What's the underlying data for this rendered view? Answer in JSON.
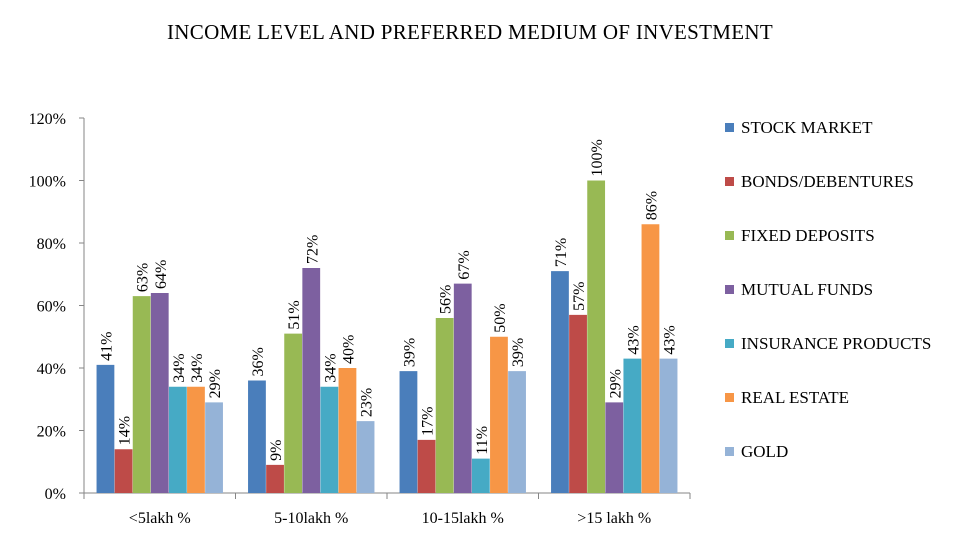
{
  "chart_data": {
    "type": "bar",
    "title": "INCOME LEVEL AND PREFERRED MEDIUM OF INVESTMENT",
    "xlabel": "",
    "ylabel": "",
    "ylim": [
      0,
      120
    ],
    "yticks": [
      "0%",
      "20%",
      "40%",
      "60%",
      "80%",
      "100%",
      "120%"
    ],
    "categories": [
      "<5lakh %",
      "5-10lakh %",
      "10-15lakh %",
      ">15 lakh %"
    ],
    "legend_position": "right",
    "grid": false,
    "series": [
      {
        "name": "STOCK MARKET",
        "color": "#4a7ebb",
        "values": [
          41,
          36,
          39,
          71
        ],
        "labels": [
          "41%",
          "36%",
          "39%",
          "71%"
        ]
      },
      {
        "name": "BONDS/DEBENTURES",
        "color": "#be4b48",
        "values": [
          14,
          9,
          17,
          57
        ],
        "labels": [
          "14%",
          "9%",
          "17%",
          "57%"
        ]
      },
      {
        "name": "FIXED DEPOSITS",
        "color": "#98b954",
        "values": [
          63,
          51,
          56,
          100
        ],
        "labels": [
          "63%",
          "51%",
          "56%",
          "100%"
        ]
      },
      {
        "name": "MUTUAL FUNDS",
        "color": "#7d60a0",
        "values": [
          64,
          72,
          67,
          29
        ],
        "labels": [
          "64%",
          "72%",
          "67%",
          "29%"
        ]
      },
      {
        "name": "INSURANCE PRODUCTS",
        "color": "#46aac5",
        "values": [
          34,
          34,
          11,
          43
        ],
        "labels": [
          "34%",
          "34%",
          "11%",
          "43%"
        ]
      },
      {
        "name": "REAL ESTATE",
        "color": "#f79646",
        "values": [
          34,
          40,
          50,
          86
        ],
        "labels": [
          "34%",
          "40%",
          "50%",
          "86%"
        ]
      },
      {
        "name": "GOLD",
        "color": "#95b3d7",
        "values": [
          29,
          23,
          39,
          43
        ],
        "labels": [
          "29%",
          "23%",
          "39%",
          "43%"
        ]
      }
    ]
  }
}
